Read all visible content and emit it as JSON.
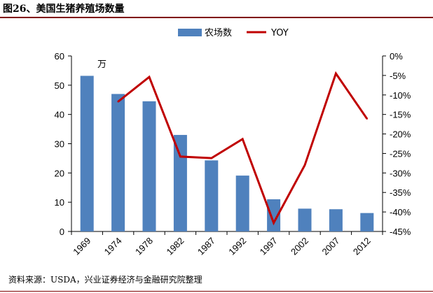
{
  "figure_title": "图26、美国生猪养殖场数量",
  "source_note": "资料来源：USDA，兴业证券经济与金融研究院整理",
  "colors": {
    "bar": "#4f81bd",
    "line": "#c00000",
    "title_rule": "#7f0000"
  },
  "chart_data": {
    "type": "bar",
    "categories": [
      "1969",
      "1974",
      "1978",
      "1982",
      "1987",
      "1992",
      "1997",
      "2002",
      "2007",
      "2012"
    ],
    "series": [
      {
        "name": "农场数",
        "kind": "bar",
        "axis": "left",
        "values": [
          53.2,
          47.0,
          44.5,
          33.0,
          24.3,
          19.1,
          11.0,
          7.8,
          7.6,
          6.3
        ]
      },
      {
        "name": "YOY",
        "kind": "line",
        "axis": "right",
        "values": [
          null,
          -11.7,
          -5.4,
          -25.8,
          -26.2,
          -21.3,
          -42.8,
          -28.0,
          -4.5,
          -16.1
        ]
      }
    ],
    "unit_label": "万",
    "left_axis": {
      "min": 0,
      "max": 60,
      "ticks": [
        "0",
        "10",
        "20",
        "30",
        "40",
        "50",
        "60"
      ]
    },
    "right_axis": {
      "min": -45,
      "max": 0,
      "ticks": [
        "0%",
        "-5%",
        "-10%",
        "-15%",
        "-20%",
        "-25%",
        "-30%",
        "-35%",
        "-40%",
        "-45%"
      ]
    },
    "legend": [
      "农场数",
      "YOY"
    ],
    "legend_position": "top-center"
  }
}
